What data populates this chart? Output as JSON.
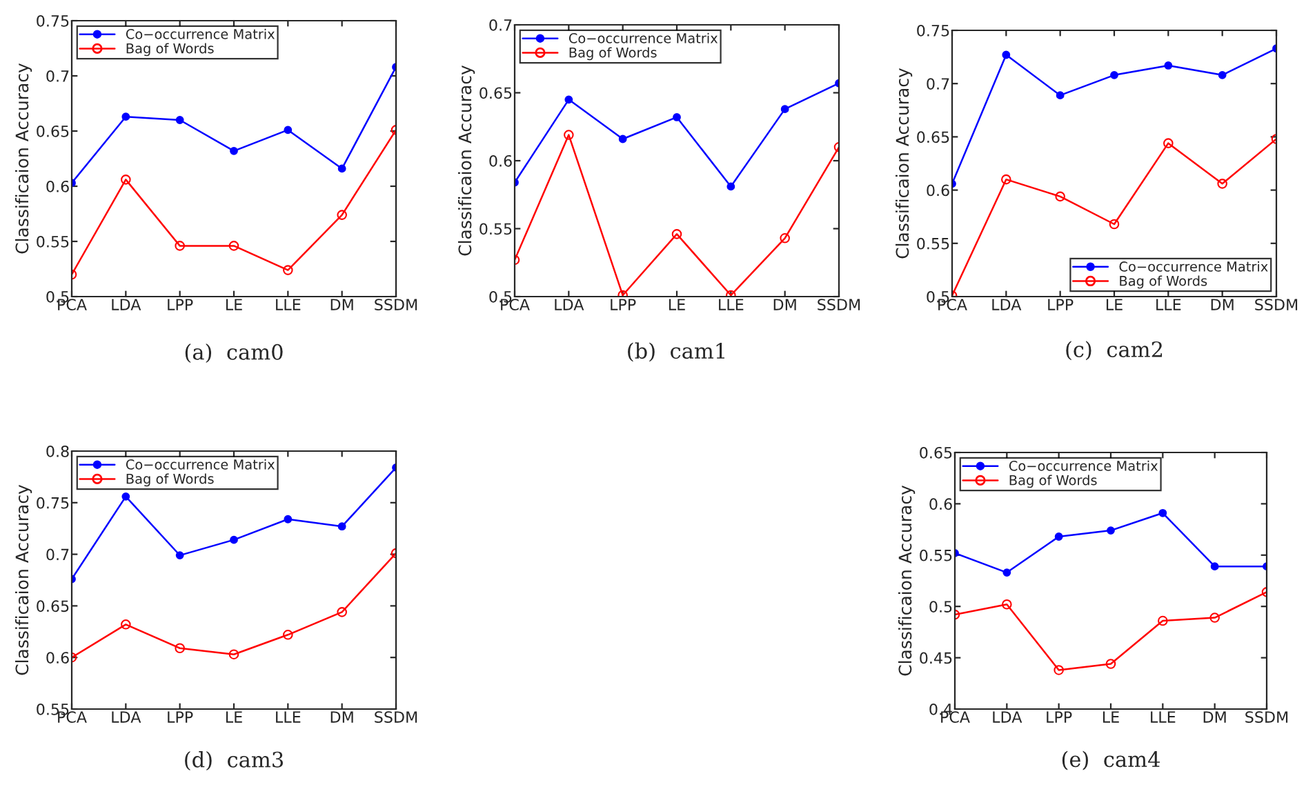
{
  "chart_data": [
    {
      "type": "line",
      "title": "(a)  cam0",
      "ylabel": "Classificaion Accuracy",
      "categories": [
        "PCA",
        "LDA",
        "LPP",
        "LE",
        "LLE",
        "DM",
        "SSDM"
      ],
      "ylim": [
        0.5,
        0.75
      ],
      "yticks": [
        0.5,
        0.55,
        0.6,
        0.65,
        0.7,
        0.75
      ],
      "legend": "top left",
      "grid": false,
      "series": [
        {
          "name": "Co−occurrence Matrix",
          "color": "#0000ff",
          "marker": "circle",
          "values": [
            0.603,
            0.663,
            0.66,
            0.632,
            0.651,
            0.616,
            0.708
          ]
        },
        {
          "name": "Bag of Words",
          "color": "#ff0000",
          "marker": "circle",
          "values": [
            0.52,
            0.606,
            0.546,
            0.546,
            0.524,
            0.574,
            0.651
          ]
        }
      ]
    },
    {
      "type": "line",
      "title": "(b)  cam1",
      "ylabel": "Classificaion Accuracy",
      "categories": [
        "PCA",
        "LDA",
        "LPP",
        "LE",
        "LLE",
        "DM",
        "SSDM"
      ],
      "ylim": [
        0.5,
        0.7
      ],
      "yticks": [
        0.5,
        0.55,
        0.6,
        0.65,
        0.7
      ],
      "legend": "top left",
      "grid": false,
      "series": [
        {
          "name": "Co−occurrence Matrix",
          "color": "#0000ff",
          "marker": "circle",
          "values": [
            0.584,
            0.645,
            0.616,
            0.632,
            0.581,
            0.638,
            0.657
          ]
        },
        {
          "name": "Bag of Words",
          "color": "#ff0000",
          "marker": "circle",
          "values": [
            0.527,
            0.619,
            0.501,
            0.546,
            0.501,
            0.543,
            0.61
          ]
        }
      ]
    },
    {
      "type": "line",
      "title": "(c)  cam2",
      "ylabel": "Classificaion Accuracy",
      "categories": [
        "PCA",
        "LDA",
        "LPP",
        "LE",
        "LLE",
        "DM",
        "SSDM"
      ],
      "ylim": [
        0.5,
        0.75
      ],
      "yticks": [
        0.5,
        0.55,
        0.6,
        0.65,
        0.7,
        0.75
      ],
      "legend": "bottom right",
      "grid": false,
      "series": [
        {
          "name": "Co−occurrence Matrix",
          "color": "#0000ff",
          "marker": "circle",
          "values": [
            0.606,
            0.727,
            0.689,
            0.708,
            0.717,
            0.708,
            0.733
          ]
        },
        {
          "name": "Bag of Words",
          "color": "#ff0000",
          "marker": "circle",
          "values": [
            0.501,
            0.61,
            0.594,
            0.568,
            0.644,
            0.606,
            0.648
          ]
        }
      ]
    },
    {
      "type": "line",
      "title": "(d)  cam3",
      "ylabel": "Classificaion Accuracy",
      "categories": [
        "PCA",
        "LDA",
        "LPP",
        "LE",
        "LLE",
        "DM",
        "SSDM"
      ],
      "ylim": [
        0.55,
        0.8
      ],
      "yticks": [
        0.55,
        0.6,
        0.65,
        0.7,
        0.75,
        0.8
      ],
      "legend": "top left",
      "grid": false,
      "series": [
        {
          "name": "Co−occurrence Matrix",
          "color": "#0000ff",
          "marker": "circle",
          "values": [
            0.676,
            0.756,
            0.699,
            0.714,
            0.734,
            0.727,
            0.784
          ]
        },
        {
          "name": "Bag of Words",
          "color": "#ff0000",
          "marker": "circle",
          "values": [
            0.6,
            0.632,
            0.609,
            0.603,
            0.622,
            0.644,
            0.701
          ]
        }
      ]
    },
    {
      "type": "line",
      "title": "(e)  cam4",
      "ylabel": "Classificaion Accuracy",
      "categories": [
        "PCA",
        "LDA",
        "LPP",
        "LE",
        "LLE",
        "DM",
        "SSDM"
      ],
      "ylim": [
        0.4,
        0.65
      ],
      "yticks": [
        0.4,
        0.45,
        0.5,
        0.55,
        0.6,
        0.65
      ],
      "legend": "top left",
      "grid": false,
      "series": [
        {
          "name": "Co−occurrence Matrix",
          "color": "#0000ff",
          "marker": "circle",
          "values": [
            0.552,
            0.533,
            0.568,
            0.574,
            0.591,
            0.539,
            0.539
          ]
        },
        {
          "name": "Bag of Words",
          "color": "#ff0000",
          "marker": "circle",
          "values": [
            0.492,
            0.502,
            0.438,
            0.444,
            0.486,
            0.489,
            0.514
          ]
        }
      ]
    }
  ]
}
